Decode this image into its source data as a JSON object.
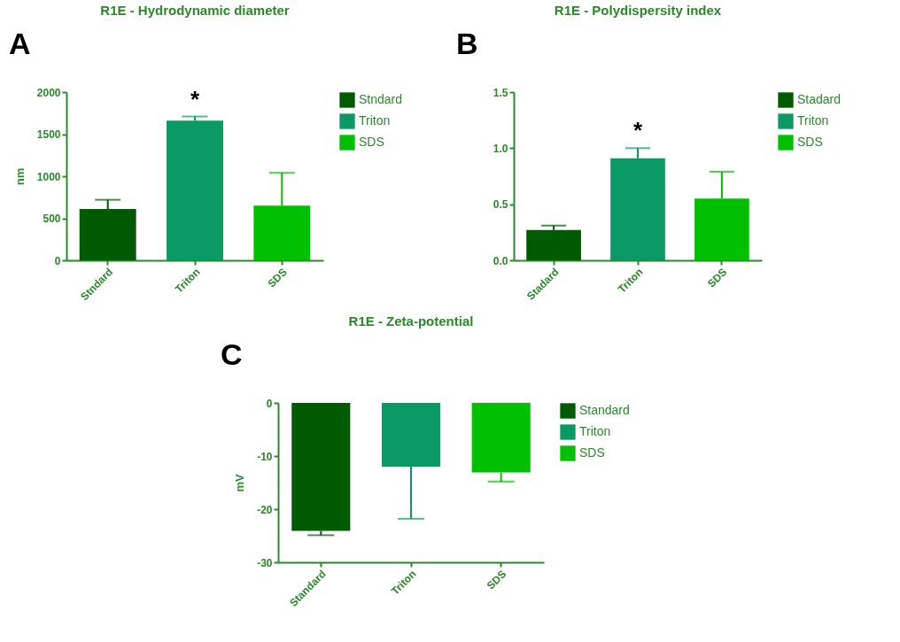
{
  "chart_data": [
    {
      "type": "bar",
      "title": "R1E - Hydrodynamic diameter",
      "ylabel": "nm",
      "categories": [
        "Stndard",
        "Triton",
        "SDS"
      ],
      "series": [
        {
          "name": "Stndard",
          "color": "#005a00",
          "values": [
            610,
            null,
            null
          ],
          "errors": [
            [
              610,
              720
            ],
            null,
            null
          ]
        },
        {
          "name": "Triton",
          "color": "#0a9a64",
          "values": [
            null,
            1660,
            null
          ],
          "errors": [
            null,
            [
              1660,
              1710
            ],
            null
          ]
        },
        {
          "name": "SDS",
          "color": "#00c000",
          "values": [
            null,
            null,
            650
          ],
          "errors": [
            null,
            null,
            [
              650,
              1040
            ]
          ]
        }
      ],
      "ylim": [
        0,
        2000
      ],
      "yticks": [
        0,
        500,
        1000,
        1500,
        2000
      ],
      "grid": false,
      "legend": "top right",
      "annotations": [
        "A",
        {
          "text": "*",
          "x": "Triton",
          "y": 1710
        }
      ]
    },
    {
      "type": "bar",
      "title": "R1E - Polydispersity index",
      "categories": [
        "Stadard",
        "Triton",
        "SDS"
      ],
      "series": [
        {
          "name": "Stadard",
          "color": "#005a00",
          "values": [
            0.27,
            null,
            null
          ],
          "errors": [
            [
              0.27,
              0.31
            ],
            null,
            null
          ]
        },
        {
          "name": "Triton",
          "color": "#0a9a64",
          "values": [
            null,
            0.91,
            null
          ],
          "errors": [
            null,
            [
              0.91,
              1.0
            ],
            null
          ]
        },
        {
          "name": "SDS",
          "color": "#00c000",
          "values": [
            null,
            null,
            0.55
          ],
          "errors": [
            null,
            null,
            [
              0.55,
              0.79
            ]
          ]
        }
      ],
      "ylim": [
        0,
        1.5
      ],
      "yticks": [
        {
          "value": 0,
          "label": "0.0"
        },
        {
          "value": 0.5,
          "label": "0.5"
        },
        {
          "value": 1,
          "label": "1.0"
        },
        {
          "value": 1.5,
          "label": "1.5"
        }
      ],
      "grid": false,
      "legend": "top right",
      "annotations": [
        "B",
        {
          "text": "*",
          "x": "Triton",
          "y": 1.0
        }
      ]
    },
    {
      "type": "bar",
      "title": "R1E - Zeta-potential",
      "ylabel": "mV",
      "categories": [
        "Standard",
        "Triton",
        "SDS"
      ],
      "series": [
        {
          "name": "Standard",
          "color": "#005a00",
          "values": [
            -24.1,
            null,
            null
          ],
          "errors": [
            [
              -24.9,
              -24.1
            ],
            null,
            null
          ]
        },
        {
          "name": "Triton",
          "color": "#0a9a64",
          "values": [
            null,
            -12,
            null
          ],
          "errors": [
            null,
            [
              -21.8,
              -12
            ],
            null
          ]
        },
        {
          "name": "SDS",
          "color": "#00c000",
          "values": [
            null,
            null,
            -13.1
          ],
          "errors": [
            null,
            null,
            [
              -14.8,
              -13.1
            ]
          ]
        }
      ],
      "ylim": [
        -30,
        0
      ],
      "yticks": [
        0,
        -10,
        -20,
        -30
      ],
      "grid": false,
      "legend": "top right",
      "annotations": [
        "C"
      ]
    }
  ]
}
